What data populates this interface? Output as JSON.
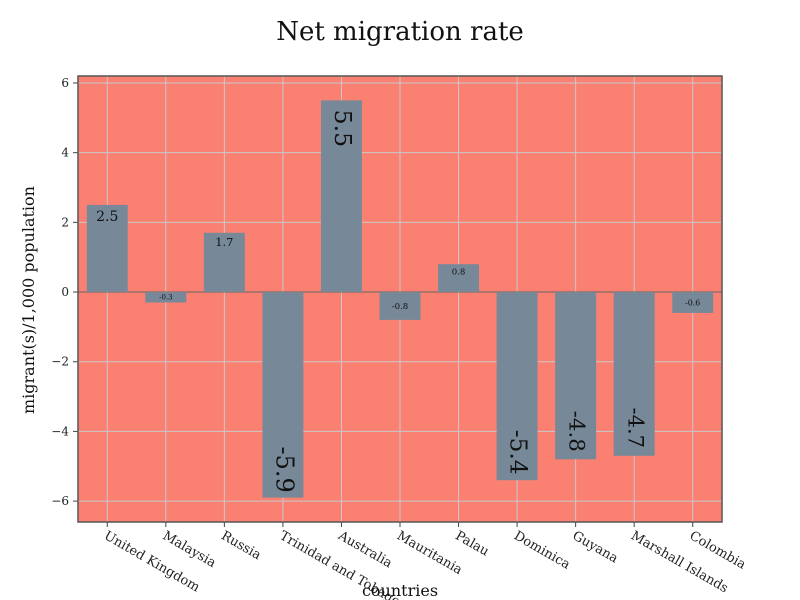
{
  "chart_data": {
    "type": "bar",
    "title": "Net migration rate",
    "xlabel": "countries",
    "ylabel": "migrant(s)/1,000 population",
    "categories": [
      "United Kingdom",
      "Malaysia",
      "Russia",
      "Trinidad and Tobago",
      "Australia",
      "Mauritania",
      "Palau",
      "Dominica",
      "Guyana",
      "Marshall Islands",
      "Colombia"
    ],
    "values": [
      2.5,
      -0.3,
      1.7,
      -5.9,
      5.5,
      -0.8,
      0.8,
      -5.4,
      -4.8,
      -4.7,
      -0.6
    ],
    "data_labels": [
      "2.5",
      "-0.3",
      "1.7",
      "-5.9",
      "5.5",
      "-0.8",
      "0.8",
      "-5.4",
      "-4.8",
      "-4.7",
      "-0.6"
    ],
    "ylim": [
      -6.6,
      6.2
    ],
    "yticks": [
      -6,
      -4,
      -2,
      0,
      2,
      4,
      6
    ],
    "ytick_labels": [
      "−6",
      "−4",
      "−2",
      "0",
      "2",
      "4",
      "6"
    ],
    "grid": true,
    "colors": {
      "plot_background": "#fa8072",
      "bar": "#778899",
      "page_background": "#ffffff"
    }
  }
}
